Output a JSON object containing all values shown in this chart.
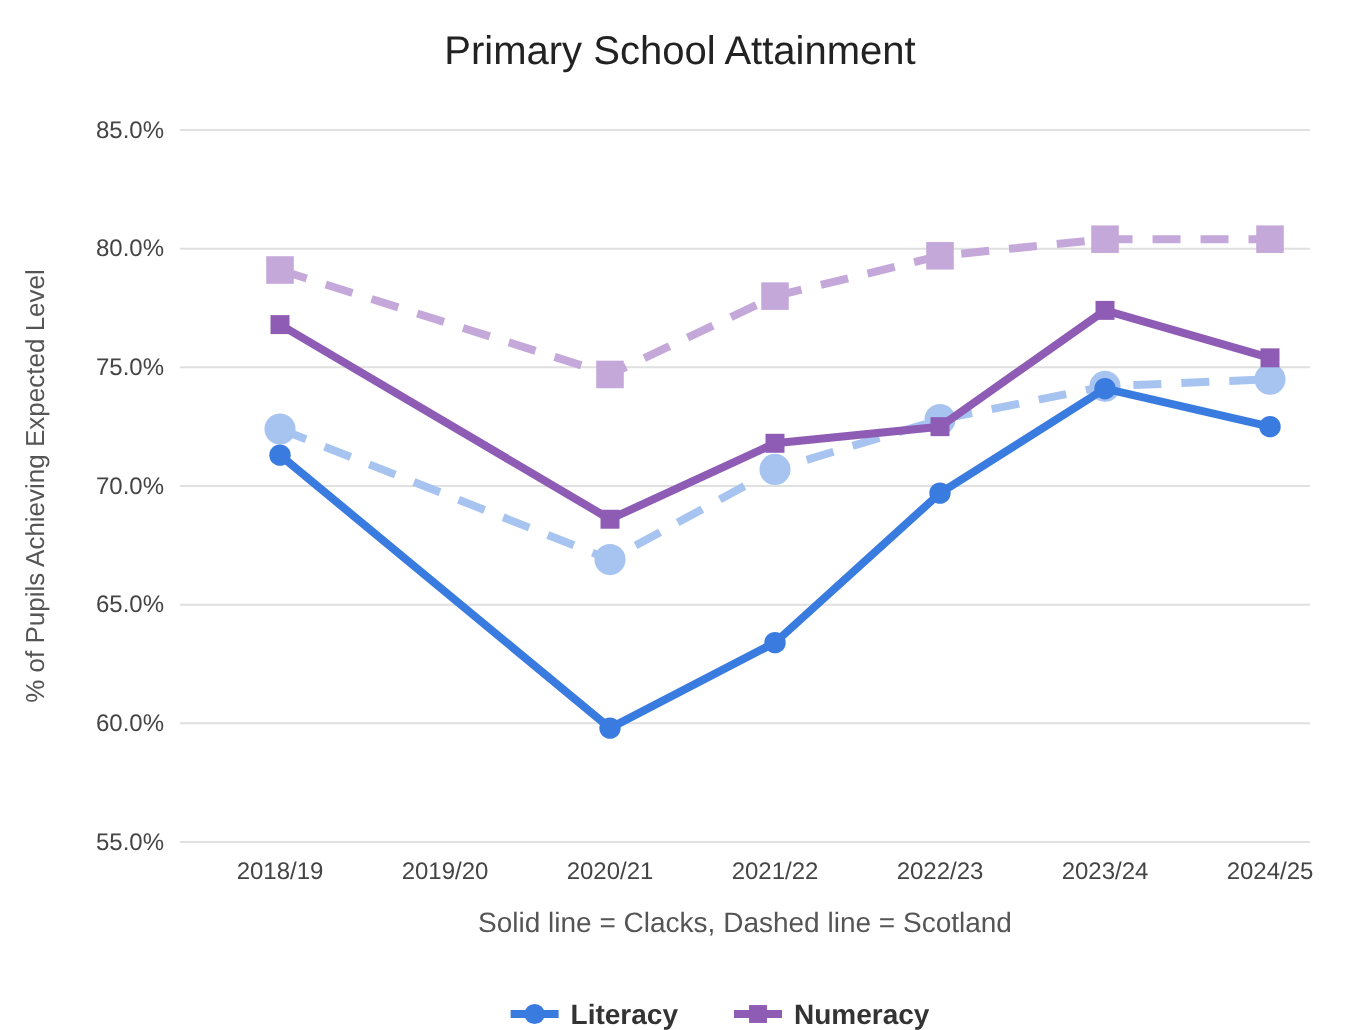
{
  "chart_data": {
    "type": "line",
    "title": "Primary School Attainment",
    "xlabel": "Solid line = Clacks, Dashed line = Scotland",
    "ylabel": "% of Pupils Achieving Expected Level",
    "categories": [
      "2018/19",
      "2019/20",
      "2020/21",
      "2021/22",
      "2022/23",
      "2023/24",
      "2024/25"
    ],
    "series": [
      {
        "color": "#c4a8da",
        "marker": "square",
        "line_style": "dashed",
        "values": [
          79.1,
          null,
          74.7,
          78.0,
          79.7,
          80.4,
          80.4
        ]
      },
      {
        "color": "#a7c4f0",
        "marker": "circle",
        "line_style": "dashed",
        "values": [
          72.4,
          null,
          66.9,
          70.7,
          72.8,
          74.2,
          74.5
        ]
      },
      {
        "name": "Numeracy",
        "color": "#8e5bb5",
        "marker": "square",
        "line_style": "solid",
        "values": [
          76.8,
          null,
          68.6,
          71.8,
          72.5,
          77.4,
          75.4
        ]
      },
      {
        "name": "Literacy",
        "color": "#3a7be0",
        "marker": "circle",
        "line_style": "solid",
        "values": [
          71.3,
          null,
          59.8,
          63.4,
          69.7,
          74.1,
          72.5
        ]
      }
    ],
    "ylim": [
      55,
      85
    ],
    "yticks": [
      {
        "value": 55,
        "label": "55.0%"
      },
      {
        "value": 60,
        "label": "60.0%"
      },
      {
        "value": 65,
        "label": "65.0%"
      },
      {
        "value": 70,
        "label": "70.0%"
      },
      {
        "value": 75,
        "label": "75.0%"
      },
      {
        "value": 80,
        "label": "80.0%"
      },
      {
        "value": 85,
        "label": "85.0%"
      }
    ],
    "grid": "y",
    "legend": "bottom"
  }
}
